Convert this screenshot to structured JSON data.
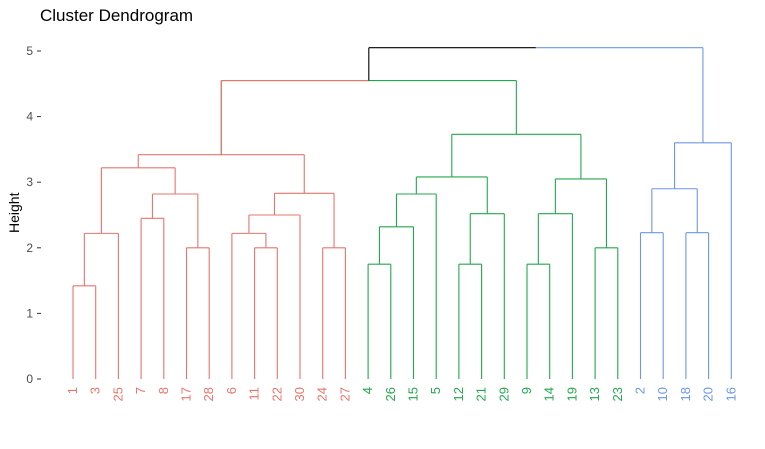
{
  "chart_data": {
    "type": "dendrogram",
    "title": "Cluster Dendrogram",
    "ylabel": "Height",
    "xlabel": "",
    "ylim": [
      0,
      5
    ],
    "yticks": [
      "0",
      "1",
      "2",
      "3",
      "4",
      "5"
    ],
    "grid": false,
    "clusters": [
      {
        "color": "#E8746C",
        "leaves": [
          "1",
          "3",
          "25",
          "7",
          "8",
          "17",
          "28",
          "6",
          "11",
          "22",
          "30",
          "24",
          "27"
        ]
      },
      {
        "color": "#22A94D",
        "leaves": [
          "4",
          "26",
          "15",
          "5",
          "12",
          "21",
          "29",
          "9",
          "14",
          "19",
          "13",
          "23"
        ]
      },
      {
        "color": "#6C97E4",
        "leaves": [
          "2",
          "10",
          "18",
          "20",
          "16"
        ]
      }
    ],
    "leaf_order": [
      "1",
      "3",
      "25",
      "7",
      "8",
      "17",
      "28",
      "6",
      "11",
      "22",
      "30",
      "24",
      "27",
      "4",
      "26",
      "15",
      "5",
      "12",
      "21",
      "29",
      "9",
      "14",
      "19",
      "13",
      "23",
      "2",
      "10",
      "18",
      "20",
      "16"
    ],
    "merges": [
      {
        "left": "1",
        "right": "3",
        "height": 1.42
      },
      {
        "left": "7",
        "right": "8",
        "height": 2.45
      },
      {
        "left": "17",
        "right": "28",
        "height": 2.0
      },
      {
        "left": "11",
        "right": "22",
        "height": 2.0
      },
      {
        "left": "24",
        "right": "27",
        "height": 2.0
      },
      {
        "left": "4",
        "right": "26",
        "height": 1.75
      },
      {
        "left": "12",
        "right": "21",
        "height": 1.75
      },
      {
        "left": "9",
        "right": "14",
        "height": 1.75
      },
      {
        "left": "13",
        "right": "23",
        "height": 2.0
      },
      {
        "left": "2",
        "right": "10",
        "height": 2.23
      },
      {
        "left": "18",
        "right": "20",
        "height": 2.23
      }
    ],
    "dendrogram_top_height": 5.05,
    "linkage_color": "#000000"
  }
}
